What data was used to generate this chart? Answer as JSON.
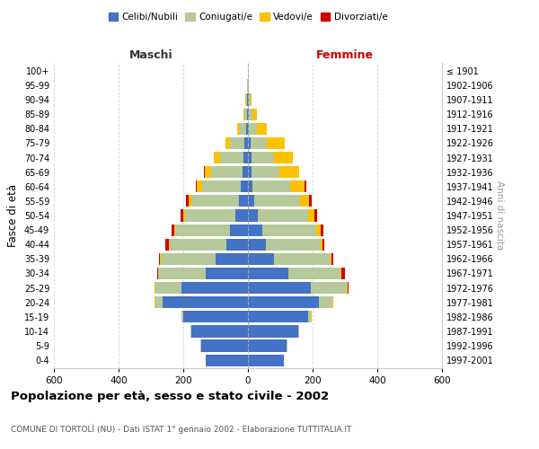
{
  "age_groups": [
    "0-4",
    "5-9",
    "10-14",
    "15-19",
    "20-24",
    "25-29",
    "30-34",
    "35-39",
    "40-44",
    "45-49",
    "50-54",
    "55-59",
    "60-64",
    "65-69",
    "70-74",
    "75-79",
    "80-84",
    "85-89",
    "90-94",
    "95-99",
    "100+"
  ],
  "birth_years": [
    "1997-2001",
    "1992-1996",
    "1987-1991",
    "1982-1986",
    "1977-1981",
    "1972-1976",
    "1967-1971",
    "1962-1966",
    "1957-1961",
    "1952-1956",
    "1947-1951",
    "1942-1946",
    "1937-1941",
    "1932-1936",
    "1927-1931",
    "1922-1926",
    "1917-1921",
    "1912-1916",
    "1907-1911",
    "1902-1906",
    "≤ 1901"
  ],
  "maschi": {
    "celibi": [
      130,
      145,
      175,
      200,
      265,
      205,
      130,
      100,
      68,
      55,
      40,
      28,
      22,
      18,
      15,
      10,
      5,
      4,
      2,
      1,
      0
    ],
    "coniugati": [
      0,
      1,
      2,
      5,
      20,
      82,
      148,
      170,
      175,
      170,
      155,
      145,
      120,
      95,
      70,
      45,
      20,
      8,
      4,
      2,
      1
    ],
    "vedovi": [
      0,
      0,
      0,
      1,
      3,
      2,
      1,
      1,
      2,
      3,
      5,
      10,
      15,
      20,
      20,
      15,
      8,
      3,
      1,
      0,
      0
    ],
    "divorziati": [
      0,
      0,
      0,
      0,
      0,
      1,
      2,
      5,
      10,
      8,
      8,
      8,
      5,
      2,
      0,
      0,
      0,
      0,
      0,
      0,
      0
    ]
  },
  "femmine": {
    "nubili": [
      110,
      120,
      155,
      185,
      220,
      195,
      125,
      80,
      55,
      45,
      30,
      20,
      15,
      12,
      10,
      8,
      4,
      3,
      2,
      1,
      0
    ],
    "coniugate": [
      0,
      1,
      2,
      10,
      40,
      110,
      162,
      175,
      170,
      165,
      155,
      140,
      115,
      85,
      70,
      50,
      25,
      10,
      5,
      2,
      1
    ],
    "vedove": [
      0,
      0,
      0,
      1,
      3,
      3,
      2,
      4,
      5,
      15,
      20,
      30,
      45,
      60,
      60,
      55,
      30,
      15,
      5,
      1,
      0
    ],
    "divorziate": [
      0,
      0,
      0,
      0,
      1,
      3,
      10,
      5,
      5,
      8,
      8,
      8,
      5,
      2,
      0,
      0,
      0,
      0,
      0,
      0,
      0
    ]
  },
  "colors": {
    "celibi_nubili": "#4472c4",
    "coniugati": "#b5c99a",
    "vedovi": "#ffc000",
    "divorziati": "#cc0000"
  },
  "xlim": 600,
  "title": "Popolazione per età, sesso e stato civile - 2002",
  "subtitle": "COMUNE DI TORTOLÌ (NU) - Dati ISTAT 1° gennaio 2002 - Elaborazione TUTTITALIA.IT",
  "ylabel": "Fasce di età",
  "ylabel2": "Anni di nascita",
  "xlabel_left": "Maschi",
  "xlabel_right": "Femmine",
  "background_color": "#ffffff",
  "grid_color": "#cccccc"
}
